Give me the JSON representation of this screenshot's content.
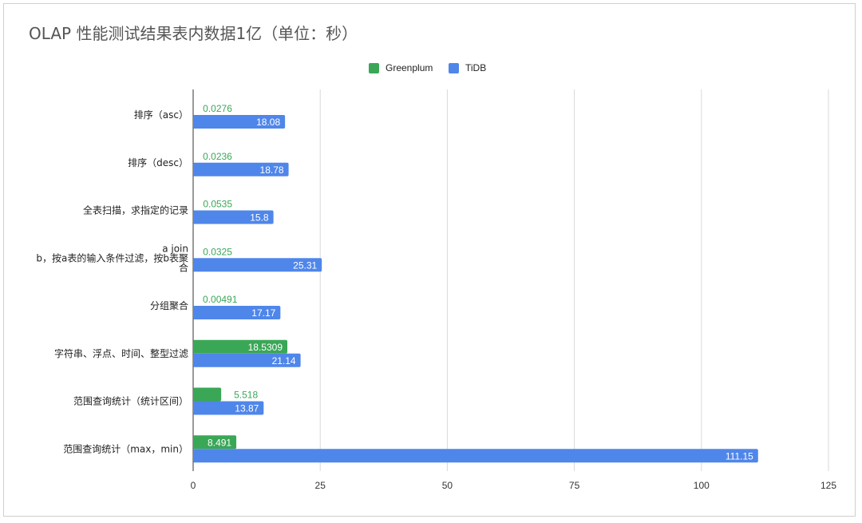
{
  "chart_data": {
    "type": "bar",
    "orientation": "horizontal",
    "title": "OLAP 性能测试结果表内数据1亿（单位：秒）",
    "categories": [
      [
        "排序（asc）"
      ],
      [
        "排序（desc）"
      ],
      [
        "全表扫描，求指定的记录"
      ],
      [
        "a join",
        "b，按a表的输入条件过滤，按b表聚",
        "合"
      ],
      [
        "分组聚合"
      ],
      [
        "字符串、浮点、时间、整型过滤"
      ],
      [
        "范围查询统计（统计区间）"
      ],
      [
        "范围查询统计（max，min）"
      ]
    ],
    "series": [
      {
        "name": "Greenplum",
        "color": "#3aa757",
        "values": [
          0.0276,
          0.0236,
          0.0535,
          0.0325,
          0.00491,
          18.5309,
          5.518,
          8.491
        ],
        "labels": [
          "0.0276",
          "0.0236",
          "0.0535",
          "0.0325",
          "0.00491",
          "18.5309",
          "5.518",
          "8.491"
        ]
      },
      {
        "name": "TiDB",
        "color": "#4f86ea",
        "values": [
          18.08,
          18.78,
          15.8,
          25.31,
          17.17,
          21.14,
          13.87,
          111.15
        ],
        "labels": [
          "18.08",
          "18.78",
          "15.8",
          "25.31",
          "17.17",
          "21.14",
          "13.87",
          "111.15"
        ]
      }
    ],
    "xlim": [
      0,
      125
    ],
    "xticks": [
      "0",
      "25",
      "50",
      "75",
      "100",
      "125"
    ],
    "grid": true,
    "legend_position": "top-center"
  }
}
